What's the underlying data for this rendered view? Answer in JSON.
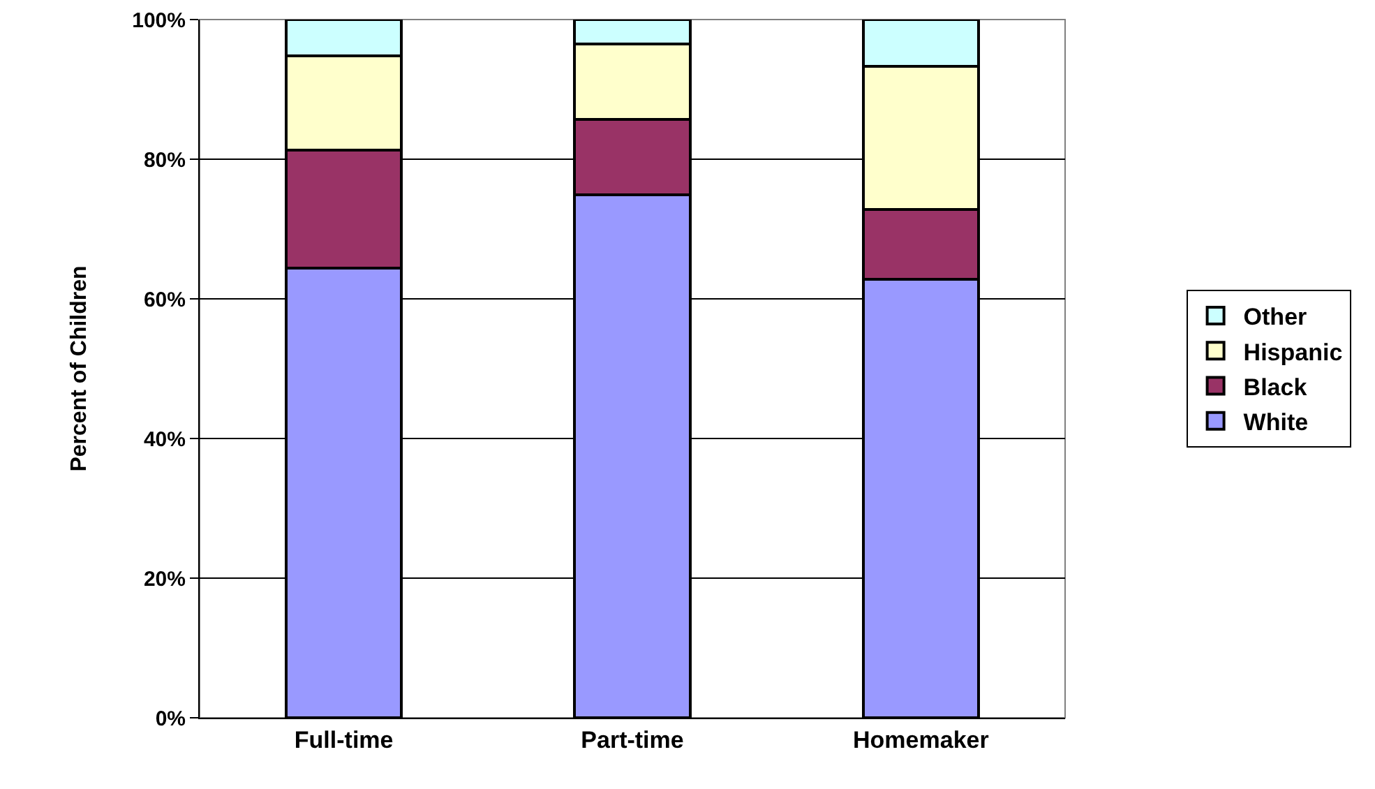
{
  "chart_data": {
    "type": "bar",
    "stacked": true,
    "ylabel": "Percent of Children",
    "categories": [
      "Full-time",
      "Part-time",
      "Homemaker"
    ],
    "series": [
      {
        "name": "White",
        "color": "#9999ff",
        "values": [
          64.4,
          74.9,
          62.8
        ]
      },
      {
        "name": "Black",
        "color": "#993366",
        "values": [
          16.9,
          10.8,
          10.0
        ]
      },
      {
        "name": "Hispanic",
        "color": "#ffffcc",
        "values": [
          13.5,
          10.8,
          20.5
        ]
      },
      {
        "name": "Other",
        "color": "#ccffff",
        "values": [
          5.2,
          3.5,
          6.7
        ]
      }
    ],
    "ylim": [
      0,
      100
    ],
    "yticks": [
      {
        "value": 0,
        "label": "0%"
      },
      {
        "value": 20,
        "label": "20%"
      },
      {
        "value": 40,
        "label": "40%"
      },
      {
        "value": 60,
        "label": "60%"
      },
      {
        "value": 80,
        "label": "80%"
      },
      {
        "value": 100,
        "label": "100%"
      }
    ],
    "grid": "y",
    "legend": "right"
  }
}
